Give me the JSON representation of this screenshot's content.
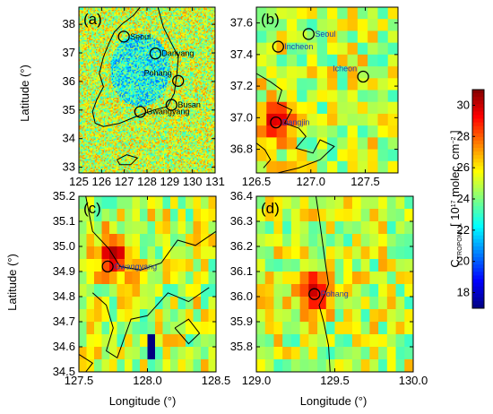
{
  "chart_data": [
    {
      "type": "heatmap",
      "panel_label": "(a)",
      "xlim": [
        125,
        131
      ],
      "ylim": [
        32.8,
        38.6
      ],
      "xticks": [
        "125",
        "126",
        "127",
        "128",
        "129",
        "130",
        "131"
      ],
      "yticks": [
        "33",
        "34",
        "35",
        "36",
        "37",
        "38"
      ],
      "xlabel": "",
      "ylabel": "Latitude (°)",
      "cities": [
        {
          "name": "Seoul",
          "lon": 126.98,
          "lat": 37.57
        },
        {
          "name": "Danyang",
          "lon": 128.37,
          "lat": 36.98
        },
        {
          "name": "Pohang",
          "lon": 129.37,
          "lat": 36.02
        },
        {
          "name": "Busan",
          "lon": 129.08,
          "lat": 35.18
        },
        {
          "name": "Gwangyang",
          "lon": 127.7,
          "lat": 34.94
        }
      ],
      "base_value": 25,
      "pattern": "noisy background 23–27 over sea; slightly lower (~22) over central inland Korea; hotspots near Gwangyang and Pohang"
    },
    {
      "type": "heatmap",
      "panel_label": "(b)",
      "xlim": [
        126.5,
        127.8
      ],
      "ylim": [
        36.65,
        37.7
      ],
      "xticks": [
        "126.5",
        "127.0",
        "127.5"
      ],
      "yticks": [
        "36.8",
        "37.0",
        "37.2",
        "37.4",
        "37.6"
      ],
      "xlabel": "",
      "ylabel": "",
      "cities": [
        {
          "name": "Seoul",
          "lon": 126.98,
          "lat": 37.53
        },
        {
          "name": "Incheon",
          "lon": 126.7,
          "lat": 37.45
        },
        {
          "name": "Icheon",
          "lon": 127.48,
          "lat": 37.26
        },
        {
          "name": "Dangjin",
          "lon": 126.68,
          "lat": 36.97
        }
      ],
      "base_value": 25,
      "hotspot": {
        "lon": 126.68,
        "lat": 36.97,
        "value": 30
      }
    },
    {
      "type": "heatmap",
      "panel_label": "(c)",
      "xlim": [
        127.5,
        128.5
      ],
      "ylim": [
        34.5,
        35.2
      ],
      "xticks": [
        "127.5",
        "128.0",
        "128.5"
      ],
      "yticks": [
        "34.5",
        "34.6",
        "34.7",
        "34.8",
        "34.9",
        "35.0",
        "35.1",
        "35.2"
      ],
      "xlabel": "Longitude (°)",
      "ylabel": "Latitude (°)",
      "cities": [
        {
          "name": "Gwangyang",
          "lon": 127.71,
          "lat": 34.92
        }
      ],
      "base_value": 25,
      "hotspot": {
        "lon": 127.75,
        "lat": 34.96,
        "value": 30.5
      },
      "lowspot": {
        "lon": 128.02,
        "lat": 34.6,
        "value": 17
      }
    },
    {
      "type": "heatmap",
      "panel_label": "(d)",
      "xlim": [
        129.0,
        130.0
      ],
      "ylim": [
        35.7,
        36.4
      ],
      "xticks": [
        "129.0",
        "129.5",
        "130.0"
      ],
      "yticks": [
        "35.8",
        "35.9",
        "36.0",
        "36.1",
        "36.2",
        "36.3",
        "36.4"
      ],
      "xlabel": "Longitude (°)",
      "ylabel": "",
      "cities": [
        {
          "name": "Pohang",
          "lon": 129.37,
          "lat": 36.01
        }
      ],
      "base_value": 25,
      "hotspot": {
        "lon": 129.37,
        "lat": 36.02,
        "value": 30
      }
    }
  ],
  "colorbar": {
    "label_pre": "C",
    "label_sub": "TROPOMI",
    "label_mid": " [ 10",
    "label_sup": "17",
    "label_unit": " molec. cm",
    "label_sup2": "−2",
    "label_post": " ]",
    "min": 17,
    "max": 31,
    "ticks": [
      "18",
      "20",
      "22",
      "24",
      "26",
      "28",
      "30"
    ]
  },
  "colors": {
    "city_marker": "#000000",
    "city_label": "#1f3fb0",
    "coastline": "#000000"
  }
}
